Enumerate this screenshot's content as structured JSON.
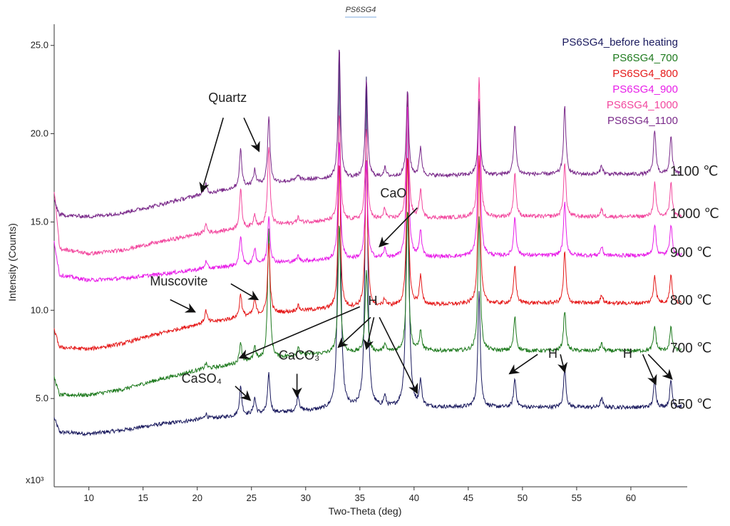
{
  "chart_data": {
    "type": "line",
    "title": "PS6SG4",
    "xlabel": "Two-Theta (deg)",
    "ylabel": "Intensity (Counts)",
    "y_multiplier_label": "x10³",
    "xlim": [
      6.8,
      65.2
    ],
    "ylim": [
      0,
      26.2
    ],
    "x_ticks": [
      10,
      15,
      20,
      25,
      30,
      35,
      40,
      45,
      50,
      55,
      60
    ],
    "y_ticks": [
      5.0,
      10.0,
      15.0,
      20.0,
      25.0
    ],
    "peak_positions": [
      20.8,
      24.0,
      25.3,
      26.6,
      29.3,
      33.1,
      35.6,
      37.3,
      39.4,
      40.6,
      46.0,
      49.3,
      53.9,
      57.3,
      62.2,
      63.7
    ],
    "series": [
      {
        "name": "PS6SG4_before heating",
        "color": "#1a1a5e",
        "temp_label": "650 ℃",
        "baseline": [
          [
            6.8,
            3.9
          ],
          [
            7.3,
            3.1
          ],
          [
            10,
            3.0
          ],
          [
            13,
            3.2
          ],
          [
            16,
            3.5
          ],
          [
            20,
            3.8
          ],
          [
            25,
            4.1
          ],
          [
            30,
            4.3
          ],
          [
            40,
            4.5
          ],
          [
            50,
            4.5
          ],
          [
            60,
            4.5
          ],
          [
            65,
            4.5
          ]
        ],
        "peaks": [
          0.3,
          1.6,
          0.9,
          2.2,
          0.9,
          20.8,
          18.8,
          0.6,
          18.3,
          1.4,
          6.6,
          1.6,
          2.2,
          0.5,
          1.5,
          1.5
        ]
      },
      {
        "name": "PS6SG4_700",
        "color": "#1e7a1e",
        "temp_label": "700 ℃",
        "baseline": [
          [
            6.8,
            6.2
          ],
          [
            7.3,
            5.2
          ],
          [
            10,
            5.2
          ],
          [
            13,
            5.5
          ],
          [
            16,
            6.0
          ],
          [
            20,
            6.6
          ],
          [
            25,
            7.1
          ],
          [
            30,
            7.5
          ],
          [
            40,
            7.7
          ],
          [
            50,
            7.7
          ],
          [
            60,
            7.7
          ],
          [
            65,
            7.7
          ]
        ],
        "peaks": [
          0.3,
          1.2,
          0.8,
          7.3,
          0.4,
          7.3,
          4.7,
          0.4,
          8.0,
          1.1,
          7.6,
          1.9,
          2.3,
          0.4,
          1.4,
          1.3
        ]
      },
      {
        "name": "PS6SG4_800",
        "color": "#e51a1a",
        "temp_label": "800 ℃",
        "baseline": [
          [
            6.8,
            8.9
          ],
          [
            7.3,
            7.9
          ],
          [
            10,
            7.8
          ],
          [
            13,
            8.1
          ],
          [
            16,
            8.6
          ],
          [
            20,
            9.2
          ],
          [
            25,
            9.7
          ],
          [
            30,
            10.0
          ],
          [
            40,
            10.3
          ],
          [
            50,
            10.4
          ],
          [
            60,
            10.4
          ],
          [
            65,
            10.4
          ]
        ],
        "peaks": [
          0.7,
          1.3,
          0.9,
          4.0,
          0.3,
          8.3,
          8.3,
          0.4,
          8.5,
          1.6,
          8.4,
          2.1,
          2.9,
          0.5,
          1.6,
          1.6
        ]
      },
      {
        "name": "PS6SG4_900",
        "color": "#e81ee8",
        "temp_label": "900 ℃",
        "baseline": [
          [
            6.8,
            13.9
          ],
          [
            7.3,
            12.0
          ],
          [
            10,
            11.7
          ],
          [
            13,
            11.8
          ],
          [
            16,
            12.0
          ],
          [
            20,
            12.3
          ],
          [
            25,
            12.6
          ],
          [
            30,
            12.8
          ],
          [
            40,
            13.0
          ],
          [
            50,
            13.1
          ],
          [
            60,
            13.1
          ],
          [
            65,
            13.1
          ]
        ],
        "peaks": [
          0.4,
          1.7,
          0.9,
          2.7,
          0.3,
          6.7,
          5.5,
          0.5,
          8.8,
          1.5,
          9.0,
          2.2,
          3.0,
          0.5,
          1.8,
          1.8
        ]
      },
      {
        "name": "PS6SG4_1000",
        "color": "#f2479e",
        "temp_label": "1000 ℃",
        "baseline": [
          [
            6.8,
            16.8
          ],
          [
            7.3,
            13.5
          ],
          [
            10,
            13.2
          ],
          [
            13,
            13.4
          ],
          [
            16,
            13.8
          ],
          [
            20,
            14.3
          ],
          [
            25,
            14.7
          ],
          [
            30,
            15.0
          ],
          [
            40,
            15.2
          ],
          [
            50,
            15.3
          ],
          [
            60,
            15.3
          ],
          [
            65,
            15.3
          ]
        ],
        "peaks": [
          0.5,
          2.2,
          0.7,
          4.5,
          0.3,
          6.0,
          5.2,
          0.6,
          7.2,
          1.6,
          8.0,
          2.5,
          3.0,
          0.4,
          1.9,
          1.9
        ]
      },
      {
        "name": "PS6SG4_1100",
        "color": "#7a2a8a",
        "temp_label": "1100 ℃",
        "baseline": [
          [
            6.8,
            16.2
          ],
          [
            7.3,
            15.4
          ],
          [
            10,
            15.3
          ],
          [
            13,
            15.5
          ],
          [
            16,
            15.9
          ],
          [
            20,
            16.5
          ],
          [
            25,
            17.1
          ],
          [
            30,
            17.4
          ],
          [
            40,
            17.6
          ],
          [
            50,
            17.7
          ],
          [
            60,
            17.7
          ],
          [
            65,
            17.7
          ]
        ],
        "peaks": [
          0.6,
          2.1,
          0.8,
          3.8,
          0.3,
          7.4,
          5.6,
          0.5,
          4.9,
          1.6,
          4.1,
          2.8,
          3.8,
          0.5,
          2.5,
          2.1
        ]
      }
    ],
    "annotations": [
      {
        "label": "Quartz",
        "x": 22.8,
        "y": 21.8,
        "arrows": [
          [
            [
              22.4,
              20.9
            ],
            [
              20.4,
              16.7
            ]
          ],
          [
            [
              24.3,
              20.9
            ],
            [
              25.7,
              19.0
            ]
          ]
        ]
      },
      {
        "label": "CaO",
        "x": 38.1,
        "y": 16.4,
        "arrows": [
          [
            [
              40.3,
              15.8
            ],
            [
              36.8,
              13.6
            ]
          ]
        ]
      },
      {
        "label": "Muscovite",
        "x": 18.3,
        "y": 11.4,
        "arrows": [
          [
            [
              23.1,
              11.5
            ],
            [
              25.6,
              10.6
            ]
          ],
          [
            [
              17.5,
              10.6
            ],
            [
              19.8,
              9.9
            ]
          ]
        ]
      },
      {
        "label": "H",
        "x": 36.2,
        "y": 10.3,
        "arrows": [
          [
            [
              35.0,
              10.2
            ],
            [
              23.9,
              7.3
            ]
          ],
          [
            [
              36.0,
              9.6
            ],
            [
              33.0,
              7.9
            ]
          ],
          [
            [
              36.3,
              9.6
            ],
            [
              35.6,
              7.8
            ]
          ],
          [
            [
              36.8,
              9.6
            ],
            [
              40.3,
              5.3
            ]
          ]
        ]
      },
      {
        "label": "H",
        "x": 52.8,
        "y": 7.3,
        "arrows": [
          [
            [
              51.4,
              7.5
            ],
            [
              48.8,
              6.4
            ]
          ],
          [
            [
              53.5,
              7.5
            ],
            [
              53.9,
              6.5
            ]
          ]
        ]
      },
      {
        "label": "H",
        "x": 59.7,
        "y": 7.3,
        "arrows": [
          [
            [
              61.1,
              7.5
            ],
            [
              62.3,
              5.8
            ]
          ],
          [
            [
              61.6,
              7.5
            ],
            [
              63.8,
              6.1
            ]
          ]
        ]
      },
      {
        "label": "CaCO₃",
        "x": 29.4,
        "y": 7.2,
        "arrows": [
          [
            [
              29.2,
              6.4
            ],
            [
              29.2,
              5.1
            ]
          ]
        ]
      },
      {
        "label": "CaSO₄",
        "x": 20.4,
        "y": 5.9,
        "arrows": [
          [
            [
              23.5,
              5.7
            ],
            [
              24.9,
              4.9
            ]
          ]
        ]
      }
    ],
    "legend": {
      "placement": "top-right"
    }
  }
}
